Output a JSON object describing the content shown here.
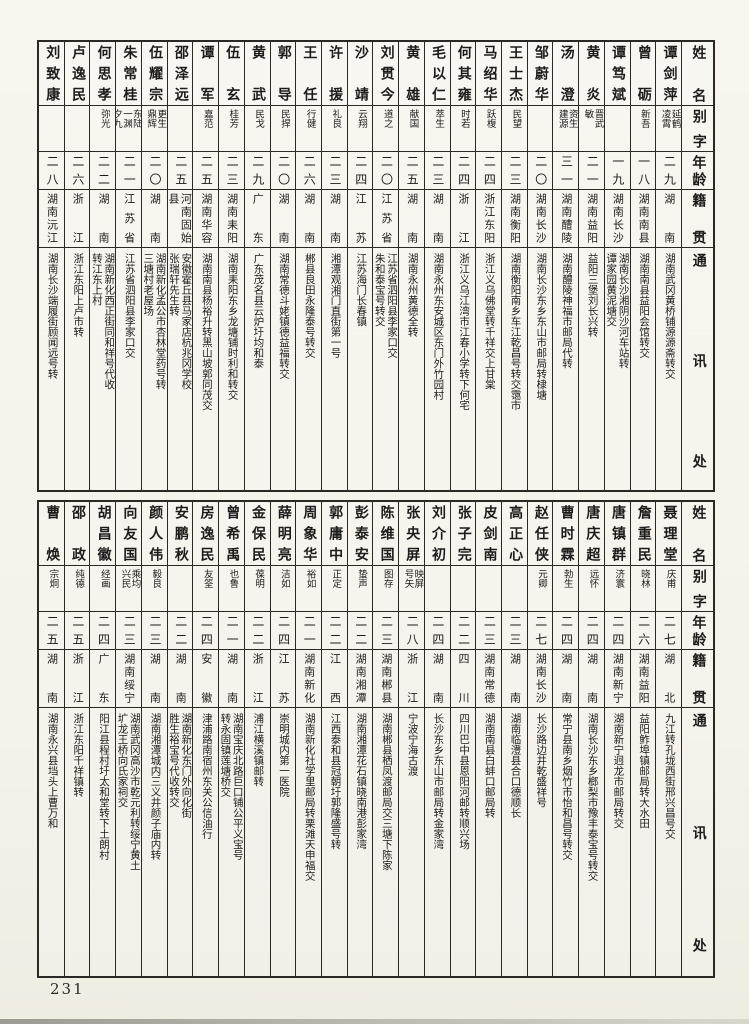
{
  "page": {
    "number": "231"
  },
  "headers": {
    "name": "姓名",
    "courtesy": "别字",
    "age": "年龄",
    "origin": "籍贯",
    "address": "通讯处"
  },
  "tables": [
    {
      "people": [
        {
          "name": "谭剑萍",
          "courtesy": "延鹤\n凌霄",
          "age": "二九",
          "origin": "湖南",
          "address": "湖南武冈黄桥铺源源斋转交"
        },
        {
          "name": "曾砺",
          "courtesy": "新吾",
          "age": "一八",
          "origin": "湖南南县",
          "address": "湖南南县益阳会馆转交"
        },
        {
          "name": "谭笃斌",
          "courtesy": "",
          "age": "一九",
          "origin": "湖南长沙",
          "address": "湖南长沙湘阴沙河车站转\n谭家园黄泥塘交"
        },
        {
          "name": "黄炎",
          "courtesy": "晋武\n敏",
          "age": "二一",
          "origin": "湖南益阳",
          "address": "益阳三堡刘长兴转"
        },
        {
          "name": "汤澄",
          "courtesy": "资生\n建源",
          "age": "三一",
          "origin": "湖南醴陵",
          "address": "湖南醴陵神福市邮局代转"
        },
        {
          "name": "邹蔚华",
          "courtesy": "",
          "age": "二〇",
          "origin": "湖南长沙",
          "address": "湖南长沙东乡东山市邮局转棣塘"
        },
        {
          "name": "王士杰",
          "courtesy": "民望",
          "age": "二三",
          "origin": "湖南衡阳",
          "address": "湖南衡阳南乡车江乾昌号转交霭市"
        },
        {
          "name": "马绍华",
          "courtesy": "跃椱",
          "age": "二四",
          "origin": "浙江东阳",
          "address": "浙江义乌佛堂转千祥交上甘棠"
        },
        {
          "name": "何其雍",
          "courtesy": "时若",
          "age": "二四",
          "origin": "浙江",
          "address": "浙江义乌江湾市江春小学转下何宅"
        },
        {
          "name": "毛以仁",
          "courtesy": "萃生",
          "age": "二三",
          "origin": "湖南",
          "address": "湖南永州东安城区东门外竹园村"
        },
        {
          "name": "黄雄",
          "courtesy": "献国",
          "age": "二五",
          "origin": "湖南",
          "address": "湖南永州黄德全转"
        },
        {
          "name": "刘贯今",
          "courtesy": "道之",
          "age": "二〇",
          "origin": "江苏省",
          "address": "江苏省泗阳县李家口交\n朱和泰宝号转交"
        },
        {
          "name": "沙靖",
          "courtesy": "云翔",
          "age": "二四",
          "origin": "江苏",
          "address": "江苏海门长春镇"
        },
        {
          "name": "许援",
          "courtesy": "礼良",
          "age": "二三",
          "origin": "湖南",
          "address": "湘潭观湘门直街第一号"
        },
        {
          "name": "王任",
          "courtesy": "行健",
          "age": "二六",
          "origin": "湖南",
          "address": "郴县良田永隆泰号转交"
        },
        {
          "name": "郭导",
          "courtesy": "民捍",
          "age": "二〇",
          "origin": "湖南",
          "address": "湖南常德斗姥镇德益福转交"
        },
        {
          "name": "黄武",
          "courtesy": "民戈",
          "age": "二九",
          "origin": "广东",
          "address": "广东茂名县云炉圩均和泰"
        },
        {
          "name": "伍玄",
          "courtesy": "桂芳",
          "age": "二三",
          "origin": "湖南耒阳",
          "address": "湖南耒阳东乡龙塘铺时利和转交"
        },
        {
          "name": "谭军",
          "courtesy": "嘉范",
          "age": "二五",
          "origin": "湖南华容",
          "address": "湖南南县杨裕升转黑山坡郭同茂交"
        },
        {
          "name": "邵泽远",
          "courtesy": "",
          "age": "二五",
          "origin": "河南固始县",
          "address": "安徽霍丘县马家店杭兆冈学校\n张瑞轩先生转"
        },
        {
          "name": "伍耀宗",
          "courtesy": "更生\n鼎辉",
          "age": "二〇",
          "origin": "湖南",
          "address": "湖南新化孟公市杏林堂药号转\n三塘村老屋场"
        },
        {
          "name": "朱常桂",
          "courtesy": "东陆\n一渊\n夕九",
          "age": "二一",
          "origin": "江苏省",
          "address": "江苏省泗阳县李家口交"
        },
        {
          "name": "何思孝",
          "courtesy": "弥光",
          "age": "二二",
          "origin": "湖南",
          "address": "湖南新化西正街同和祥号代收\n转江东上村"
        },
        {
          "name": "卢逸民",
          "courtesy": "",
          "age": "二六",
          "origin": "浙江",
          "address": "浙江东阳上卢市转"
        },
        {
          "name": "刘致康",
          "courtesy": "",
          "age": "二八",
          "origin": "湖南沅江",
          "address": "湖南长沙端履街顾闻远号转"
        }
      ]
    },
    {
      "people": [
        {
          "name": "聂理堂",
          "courtesy": "庆甫",
          "age": "二七",
          "origin": "湖北",
          "address": "九江转孔垅西街邢兴昌号交"
        },
        {
          "name": "詹重民",
          "courtesy": "晓林",
          "age": "二六",
          "origin": "湖南益阳",
          "address": "益阳鲊埠镇邮局转大水田"
        },
        {
          "name": "唐镇群",
          "courtesy": "济寰",
          "age": "二四",
          "origin": "湖南新宁",
          "address": "湖南新宁迥龙市邮局转交"
        },
        {
          "name": "唐庆超",
          "courtesy": "远怀",
          "age": "二四",
          "origin": "湖南",
          "address": "湖南长沙东乡榔梨市豫丰泰宝号转交"
        },
        {
          "name": "曹时霖",
          "courtesy": "勃生",
          "age": "二四",
          "origin": "湖南",
          "address": "常宁县南乡烟竹市怡和昌号转交"
        },
        {
          "name": "赵任侠",
          "courtesy": "元卿",
          "age": "二七",
          "origin": "湖南长沙",
          "address": "长沙路边井乾盛祥号"
        },
        {
          "name": "高正心",
          "courtesy": "",
          "age": "二三",
          "origin": "湖南",
          "address": "湖南临澧县合口德顺长"
        },
        {
          "name": "皮剑南",
          "courtesy": "",
          "age": "二三",
          "origin": "湖南常德",
          "address": "湖南南县白蚌口邮局转"
        },
        {
          "name": "张子完",
          "courtesy": "",
          "age": "二二",
          "origin": "四川",
          "address": "四川巴中县恩阳河邮转顺兴场"
        },
        {
          "name": "刘介初",
          "courtesy": "",
          "age": "二四",
          "origin": "湖南",
          "address": "长沙东乡东山市邮局转金家湾"
        },
        {
          "name": "张央屏",
          "courtesy": "映屏\n号矢",
          "age": "二八",
          "origin": "浙江",
          "address": "宁波宁海古渡"
        },
        {
          "name": "陈维国",
          "courtesy": "图存",
          "age": "二三",
          "origin": "湖南郴县",
          "address": "湖南郴县栖凤渡邮局交三塘下陈家"
        },
        {
          "name": "彭泰安",
          "courtesy": "蛰声",
          "age": "二二",
          "origin": "湖南湘潭",
          "address": "湖南湘潭花石镇晓南港彭家湾"
        },
        {
          "name": "郭庸中",
          "courtesy": "正定",
          "age": "二二",
          "origin": "江西",
          "address": "江西泰和县冠朝圩郭隆盛号转"
        },
        {
          "name": "周象华",
          "courtesy": "裕如",
          "age": "二一",
          "origin": "湖南新化",
          "address": "湖南新化社学里邮局转栗滩天申福交"
        },
        {
          "name": "薛明亮",
          "courtesy": "洁如",
          "age": "二四",
          "origin": "江苏",
          "address": "崇明城内第一医院"
        },
        {
          "name": "金保民",
          "courtesy": "葆明",
          "age": "二二",
          "origin": "浙江",
          "address": "浦江横溪镇邮转"
        },
        {
          "name": "曾希禹",
          "courtesy": "也鲁",
          "age": "二一",
          "origin": "湖南",
          "address": "湖南宝庆北路巨口铺公平义宝号\n转永固镇莲塘桥交"
        },
        {
          "name": "房逸民",
          "courtesy": "友筌",
          "age": "二四",
          "origin": "安徽",
          "address": "津浦路南宿州东关公信油行"
        },
        {
          "name": "安鹏秋",
          "courtesy": "",
          "age": "二二",
          "origin": "湖南",
          "address": "湖南新化东门外向化街\n胜生裕宝号代收转交"
        },
        {
          "name": "颜人伟",
          "courtesy": "毅良",
          "age": "二三",
          "origin": "湖南",
          "address": "湖南湘潭城内三义井颜子庙内转"
        },
        {
          "name": "向友国",
          "courtesy": "乘均\n兴民",
          "age": "二三",
          "origin": "湖南绥宁",
          "address": "湖南武冈高沙市乾元利转绥宁黄土\n圹龙王桥向氏家祠交"
        },
        {
          "name": "胡昌徽",
          "courtesy": "经画",
          "age": "二四",
          "origin": "广东",
          "address": "阳江县程村圩太和堂转下土朗村"
        },
        {
          "name": "邵政",
          "courtesy": "纯德",
          "age": "二五",
          "origin": "浙江",
          "address": "浙江东阳千祥镇转"
        },
        {
          "name": "曹焕",
          "courtesy": "宗炯",
          "age": "二五",
          "origin": "湖南",
          "address": "湖南永兴县垱头上曹万和"
        }
      ]
    }
  ]
}
